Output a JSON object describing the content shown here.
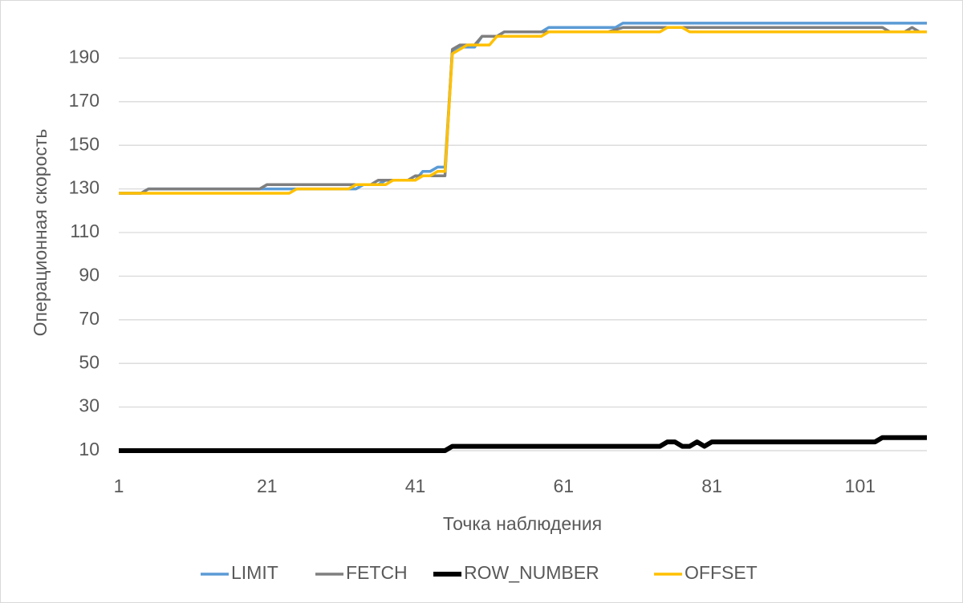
{
  "chart_data": {
    "type": "line",
    "x_label": "Точка наблюдения",
    "y_label": "Операционная скорость",
    "x": [
      1,
      2,
      3,
      4,
      5,
      6,
      7,
      8,
      9,
      10,
      11,
      12,
      13,
      14,
      15,
      16,
      17,
      18,
      19,
      20,
      21,
      22,
      23,
      24,
      25,
      26,
      27,
      28,
      29,
      30,
      31,
      32,
      33,
      34,
      35,
      36,
      37,
      38,
      39,
      40,
      41,
      42,
      43,
      44,
      45,
      46,
      47,
      48,
      49,
      50,
      51,
      52,
      53,
      54,
      55,
      56,
      57,
      58,
      59,
      60,
      61,
      62,
      63,
      64,
      65,
      66,
      67,
      68,
      69,
      70,
      71,
      72,
      73,
      74,
      75,
      76,
      77,
      78,
      79,
      80,
      81,
      82,
      83,
      84,
      85,
      86,
      87,
      88,
      89,
      90,
      91,
      92,
      93,
      94,
      95,
      96,
      97,
      98,
      99,
      100,
      101,
      102,
      103,
      104,
      105,
      106,
      107,
      108,
      109,
      110
    ],
    "xlim": [
      1,
      110
    ],
    "xticks": [
      1,
      21,
      41,
      61,
      81,
      101
    ],
    "ylim": [
      10,
      210
    ],
    "yticks": [
      10,
      30,
      50,
      70,
      90,
      110,
      130,
      150,
      170,
      190
    ],
    "grid": true,
    "legend": "bottom",
    "series": [
      {
        "name": "LIMIT",
        "color": "#5b9bd5",
        "values": [
          128,
          128,
          128,
          128,
          130,
          130,
          130,
          130,
          130,
          130,
          130,
          130,
          130,
          130,
          130,
          130,
          130,
          130,
          130,
          130,
          130,
          130,
          130,
          130,
          130,
          130,
          130,
          130,
          130,
          130,
          130,
          130,
          130,
          132,
          132,
          132,
          134,
          134,
          134,
          134,
          134,
          138,
          138,
          140,
          140,
          193,
          195,
          195,
          195,
          200,
          200,
          200,
          202,
          202,
          202,
          202,
          202,
          202,
          204,
          204,
          204,
          204,
          204,
          204,
          204,
          204,
          204,
          204,
          206,
          206,
          206,
          206,
          206,
          206,
          206,
          206,
          206,
          206,
          206,
          206,
          206,
          206,
          206,
          206,
          206,
          206,
          206,
          206,
          206,
          206,
          206,
          206,
          206,
          206,
          206,
          206,
          206,
          206,
          206,
          206,
          206,
          206,
          206,
          206,
          206,
          206,
          206,
          206,
          206,
          206
        ]
      },
      {
        "name": "FETCH",
        "color": "#7f7f7f",
        "values": [
          128,
          128,
          128,
          128,
          130,
          130,
          130,
          130,
          130,
          130,
          130,
          130,
          130,
          130,
          130,
          130,
          130,
          130,
          130,
          130,
          132,
          132,
          132,
          132,
          132,
          132,
          132,
          132,
          132,
          132,
          132,
          132,
          132,
          132,
          132,
          134,
          134,
          134,
          134,
          134,
          136,
          136,
          136,
          136,
          136,
          194,
          196,
          196,
          196,
          200,
          200,
          200,
          202,
          202,
          202,
          202,
          202,
          202,
          202,
          202,
          202,
          202,
          202,
          202,
          202,
          202,
          202,
          203,
          204,
          204,
          204,
          204,
          204,
          204,
          204,
          204,
          204,
          204,
          204,
          204,
          204,
          204,
          204,
          204,
          204,
          204,
          204,
          204,
          204,
          204,
          204,
          204,
          204,
          204,
          204,
          204,
          204,
          204,
          204,
          204,
          204,
          204,
          204,
          204,
          202,
          202,
          202,
          204,
          202,
          202
        ]
      },
      {
        "name": "ROW_NUMBER",
        "color": "#000000",
        "values": [
          10,
          10,
          10,
          10,
          10,
          10,
          10,
          10,
          10,
          10,
          10,
          10,
          10,
          10,
          10,
          10,
          10,
          10,
          10,
          10,
          10,
          10,
          10,
          10,
          10,
          10,
          10,
          10,
          10,
          10,
          10,
          10,
          10,
          10,
          10,
          10,
          10,
          10,
          10,
          10,
          10,
          10,
          10,
          10,
          10,
          12,
          12,
          12,
          12,
          12,
          12,
          12,
          12,
          12,
          12,
          12,
          12,
          12,
          12,
          12,
          12,
          12,
          12,
          12,
          12,
          12,
          12,
          12,
          12,
          12,
          12,
          12,
          12,
          12,
          14,
          14,
          12,
          12,
          14,
          12,
          14,
          14,
          14,
          14,
          14,
          14,
          14,
          14,
          14,
          14,
          14,
          14,
          14,
          14,
          14,
          14,
          14,
          14,
          14,
          14,
          14,
          14,
          14,
          16,
          16,
          16,
          16,
          16,
          16,
          16
        ]
      },
      {
        "name": "OFFSET",
        "color": "#ffc000",
        "values": [
          128,
          128,
          128,
          128,
          128,
          128,
          128,
          128,
          128,
          128,
          128,
          128,
          128,
          128,
          128,
          128,
          128,
          128,
          128,
          128,
          128,
          128,
          128,
          128,
          130,
          130,
          130,
          130,
          130,
          130,
          130,
          130,
          132,
          132,
          132,
          132,
          132,
          134,
          134,
          134,
          134,
          136,
          136,
          138,
          138,
          192,
          194,
          196,
          196,
          196,
          196,
          200,
          200,
          200,
          200,
          200,
          200,
          200,
          202,
          202,
          202,
          202,
          202,
          202,
          202,
          202,
          202,
          202,
          202,
          202,
          202,
          202,
          202,
          202,
          204,
          204,
          204,
          202,
          202,
          202,
          202,
          202,
          202,
          202,
          202,
          202,
          202,
          202,
          202,
          202,
          202,
          202,
          202,
          202,
          202,
          202,
          202,
          202,
          202,
          202,
          202,
          202,
          202,
          202,
          202,
          202,
          202,
          202,
          202,
          202
        ]
      }
    ]
  }
}
